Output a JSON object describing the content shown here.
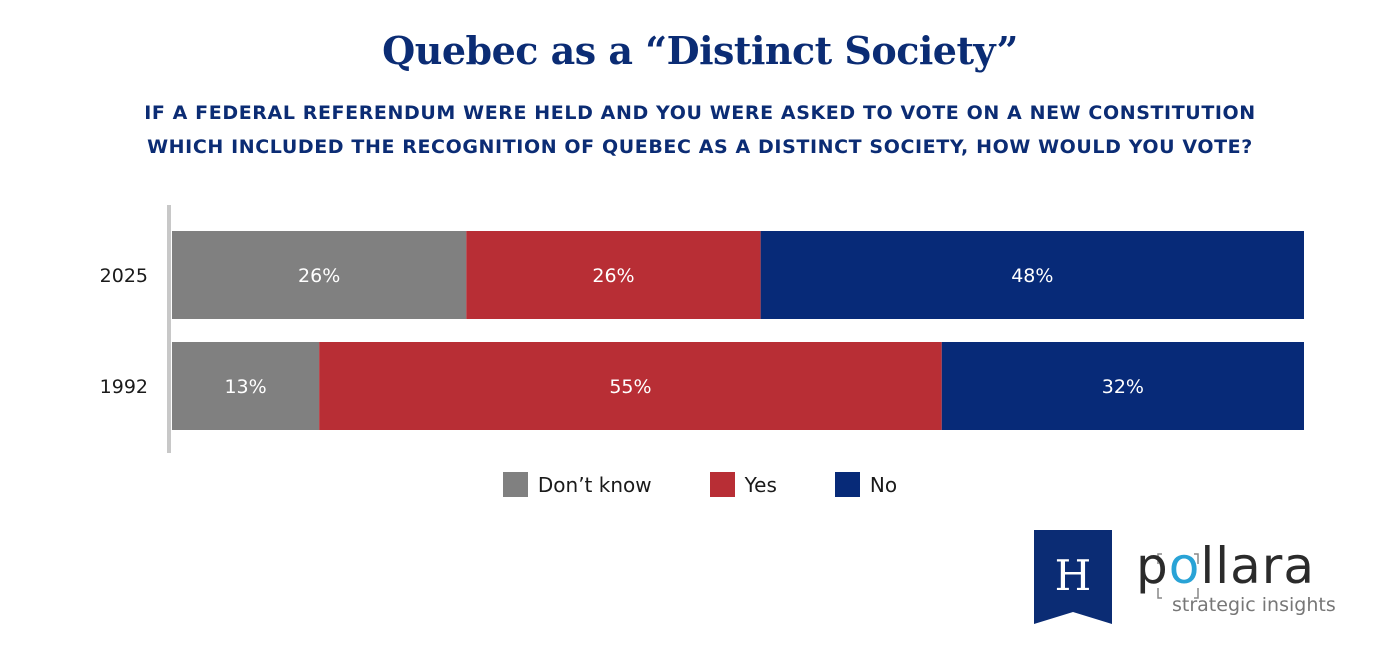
{
  "title": "Quebec as a “Distinct Society”",
  "subtitle": [
    "IF A FEDERAL REFERENDUM WERE HELD AND YOU WERE ASKED TO VOTE ON A NEW CONSTITUTION",
    "WHICH INCLUDED THE RECOGNITION OF QUEBEC AS A DISTINCT SOCIETY, HOW WOULD YOU VOTE?"
  ],
  "chart_data": {
    "type": "bar",
    "orientation": "horizontal",
    "stacked": true,
    "categories": [
      "2025",
      "1992"
    ],
    "series": [
      {
        "name": "Don’t know",
        "values": [
          26,
          13
        ],
        "labels": [
          "26%",
          "13%"
        ],
        "color": "#808080"
      },
      {
        "name": "Yes",
        "values": [
          26,
          55
        ],
        "labels": [
          "26%",
          "55%"
        ],
        "color": "#b82e35"
      },
      {
        "name": "No",
        "values": [
          48,
          32
        ],
        "labels": [
          "48%",
          "32%"
        ],
        "color": "#072a78"
      }
    ],
    "xlim": [
      0,
      100
    ],
    "grid": false,
    "legend": "bottom"
  },
  "logo": {
    "letter": "H",
    "brand_parts": [
      "p",
      "o",
      "llara"
    ],
    "tagline": "strategic insights",
    "colors": {
      "flag": "#0b2c74",
      "accent": "#29a3d6",
      "text": "#2b2b2b"
    }
  }
}
